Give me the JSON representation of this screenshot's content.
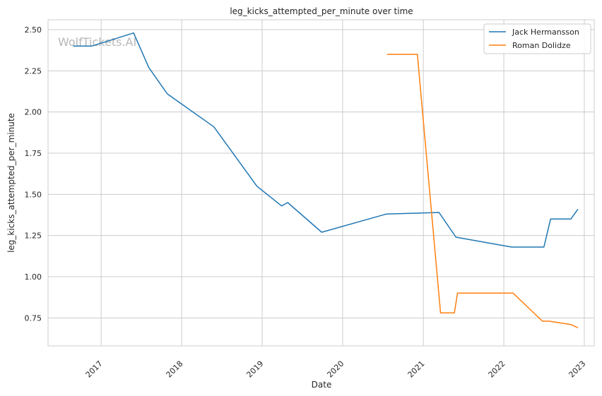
{
  "chart_data": {
    "type": "line",
    "title": "leg_kicks_attempted_per_minute over time",
    "xlabel": "Date",
    "ylabel": "leg_kicks_attempted_per_minute",
    "watermark": "WolfTickets.AI",
    "grid": true,
    "legend_position": "top-right",
    "x_range": [
      "2016-05-05",
      "2023-02-15"
    ],
    "ylim": [
      0.58,
      2.56
    ],
    "x_ticks": [
      "2017",
      "2018",
      "2019",
      "2020",
      "2021",
      "2022",
      "2023"
    ],
    "y_ticks": [
      "0.75",
      "1.00",
      "1.25",
      "1.50",
      "1.75",
      "2.00",
      "2.25",
      "2.50"
    ],
    "series": [
      {
        "name": "Jack Hermansson",
        "color": "#1f77b4",
        "points": [
          {
            "x": "2016-08-27",
            "y": 2.4
          },
          {
            "x": "2016-11-19",
            "y": 2.4
          },
          {
            "x": "2017-05-28",
            "y": 2.48
          },
          {
            "x": "2017-08-05",
            "y": 2.27
          },
          {
            "x": "2017-10-28",
            "y": 2.11
          },
          {
            "x": "2018-05-27",
            "y": 1.91
          },
          {
            "x": "2018-12-08",
            "y": 1.55
          },
          {
            "x": "2019-03-30",
            "y": 1.43
          },
          {
            "x": "2019-04-27",
            "y": 1.45
          },
          {
            "x": "2019-09-28",
            "y": 1.27
          },
          {
            "x": "2020-07-16",
            "y": 1.38
          },
          {
            "x": "2021-03-13",
            "y": 1.39
          },
          {
            "x": "2021-05-29",
            "y": 1.24
          },
          {
            "x": "2022-02-05",
            "y": 1.18
          },
          {
            "x": "2022-07-02",
            "y": 1.18
          },
          {
            "x": "2022-08-01",
            "y": 1.35
          },
          {
            "x": "2022-11-01",
            "y": 1.35
          },
          {
            "x": "2022-12-03",
            "y": 1.41
          }
        ]
      },
      {
        "name": "Roman Dolidze",
        "color": "#ff7f0e",
        "points": [
          {
            "x": "2020-07-20",
            "y": 2.35
          },
          {
            "x": "2020-12-05",
            "y": 2.35
          },
          {
            "x": "2021-03-20",
            "y": 0.78
          },
          {
            "x": "2021-05-22",
            "y": 0.78
          },
          {
            "x": "2021-06-05",
            "y": 0.9
          },
          {
            "x": "2022-02-12",
            "y": 0.9
          },
          {
            "x": "2022-06-25",
            "y": 0.73
          },
          {
            "x": "2022-07-25",
            "y": 0.73
          },
          {
            "x": "2022-11-01",
            "y": 0.71
          },
          {
            "x": "2022-12-03",
            "y": 0.69
          }
        ]
      }
    ]
  }
}
